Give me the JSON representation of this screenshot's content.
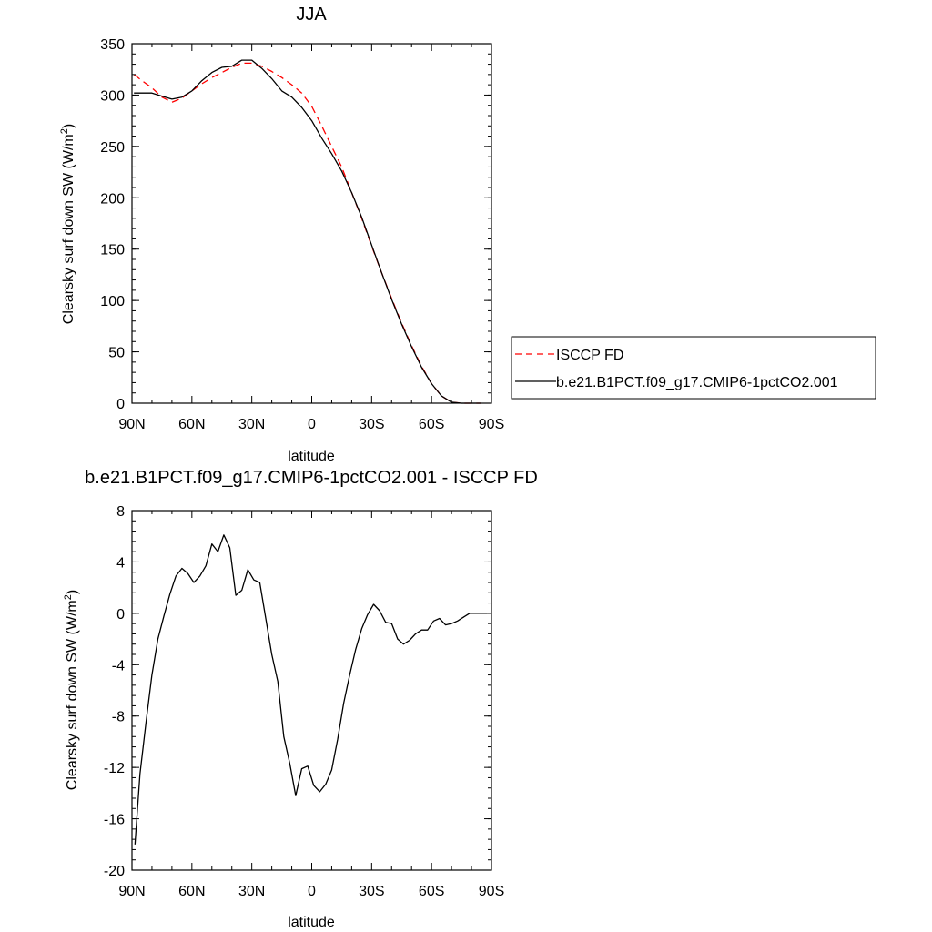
{
  "chart_data": [
    {
      "type": "line",
      "title": "JJA",
      "xlabel": "latitude",
      "ylabel_main": "Clearsky surf down SW (W/m",
      "ylabel_sup": "2",
      "ylabel_tail": ")",
      "xlim": [
        90,
        -90
      ],
      "ylim": [
        0,
        350
      ],
      "x_ticks": [
        90,
        60,
        30,
        0,
        -30,
        -60,
        -90
      ],
      "x_tick_labels": [
        "90N",
        "60N",
        "30N",
        "0",
        "30S",
        "60S",
        "90S"
      ],
      "y_ticks": [
        0,
        50,
        100,
        150,
        200,
        250,
        300,
        350
      ],
      "y_tick_labels": [
        "0",
        "50",
        "100",
        "150",
        "200",
        "250",
        "300",
        "350"
      ],
      "legend_position": "right",
      "series": [
        {
          "name": "ISCCP FD",
          "color": "#ff0000",
          "dash": "dashed",
          "x": [
            89,
            85,
            80,
            75,
            70,
            65,
            60,
            55,
            50,
            45,
            40,
            35,
            30,
            25,
            20,
            15,
            10,
            5,
            0,
            -5,
            -10,
            -15,
            -20,
            -25,
            -30,
            -35,
            -40,
            -45,
            -50,
            -55,
            -60,
            -65,
            -70,
            -75,
            -80,
            -85
          ],
          "y": [
            320,
            314,
            307,
            298,
            293,
            297,
            304,
            311,
            317,
            322,
            327,
            331,
            331,
            328,
            323,
            317,
            310,
            302,
            289,
            270,
            250,
            230,
            205,
            180,
            153,
            127,
            102,
            78,
            56,
            36,
            19,
            7,
            1,
            0,
            0,
            0
          ]
        },
        {
          "name": "b.e21.B1PCT.f09_g17.CMIP6-1pctCO2.001",
          "color": "#000000",
          "dash": "solid",
          "x": [
            89,
            85,
            80,
            75,
            70,
            65,
            60,
            55,
            50,
            45,
            40,
            35,
            30,
            25,
            20,
            15,
            10,
            5,
            0,
            -5,
            -10,
            -15,
            -20,
            -25,
            -30,
            -35,
            -40,
            -45,
            -50,
            -55,
            -60,
            -65,
            -70,
            -75,
            -80,
            -85
          ],
          "y": [
            302,
            302,
            302,
            299,
            296,
            298,
            304,
            314,
            322,
            327,
            328,
            334,
            334,
            326,
            316,
            304,
            298,
            288,
            275,
            258,
            243,
            226,
            205,
            181,
            154,
            127,
            101,
            77,
            55,
            35,
            19,
            7,
            1,
            0,
            0,
            0
          ]
        }
      ]
    },
    {
      "type": "line",
      "title": "b.e21.B1PCT.f09_g17.CMIP6-1pctCO2.001 - ISCCP FD",
      "xlabel": "latitude",
      "ylabel_main": "Clearsky surf down SW (W/m",
      "ylabel_sup": "2",
      "ylabel_tail": ")",
      "xlim": [
        90,
        -90
      ],
      "ylim": [
        -20,
        8
      ],
      "x_ticks": [
        90,
        60,
        30,
        0,
        -30,
        -60,
        -90
      ],
      "x_tick_labels": [
        "90N",
        "60N",
        "30N",
        "0",
        "30S",
        "60S",
        "90S"
      ],
      "y_ticks": [
        -20,
        -16,
        -12,
        -8,
        -4,
        0,
        4,
        8
      ],
      "y_tick_labels": [
        "-20",
        "-16",
        "-12",
        "-8",
        "-4",
        "0",
        "4",
        "8"
      ],
      "series": [
        {
          "color": "#000000",
          "dash": "solid",
          "x": [
            88.5,
            86,
            83,
            80,
            77,
            74,
            71,
            68,
            65,
            62,
            59,
            56,
            53,
            50,
            47,
            44,
            41,
            38,
            35,
            32,
            29,
            26,
            23,
            20,
            17,
            14,
            11,
            8,
            5,
            2,
            -1,
            -4,
            -7,
            -10,
            -13,
            -16,
            -19,
            -22,
            -25,
            -28,
            -31,
            -34,
            -37,
            -40,
            -43,
            -46,
            -49,
            -52,
            -55,
            -58,
            -61,
            -64,
            -67,
            -70,
            -73,
            -76,
            -79,
            -82,
            -85,
            -88
          ],
          "y": [
            -18.0,
            -12.5,
            -8.5,
            -4.8,
            -2.0,
            -0.2,
            1.5,
            2.9,
            3.5,
            3.1,
            2.4,
            2.9,
            3.7,
            5.4,
            4.8,
            6.1,
            5.1,
            1.4,
            1.8,
            3.4,
            2.6,
            2.4,
            -0.4,
            -3.2,
            -5.3,
            -9.6,
            -11.7,
            -14.2,
            -12.1,
            -11.9,
            -13.4,
            -13.9,
            -13.3,
            -12.2,
            -9.8,
            -7.0,
            -4.8,
            -2.8,
            -1.2,
            -0.1,
            0.7,
            0.2,
            -0.7,
            -0.8,
            -2.0,
            -2.4,
            -2.1,
            -1.6,
            -1.3,
            -1.3,
            -0.6,
            -0.4,
            -0.9,
            -0.8,
            -0.6,
            -0.3,
            0.0,
            0.0,
            0.0,
            0.0
          ]
        }
      ]
    }
  ]
}
